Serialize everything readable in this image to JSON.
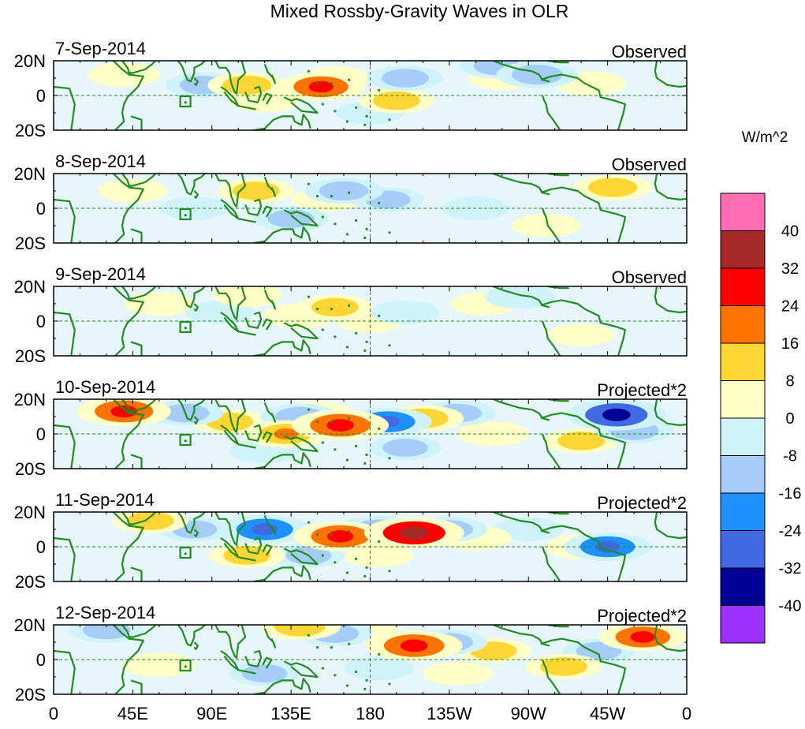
{
  "title": "Mixed Rossby-Gravity Waves in OLR",
  "panels": [
    {
      "date": "7-Sep-2014",
      "label": "Observed",
      "anomalies": [
        {
          "lon": 152,
          "lat": 5,
          "value": 18
        },
        {
          "lon": 195,
          "lat": -3,
          "value": 10
        },
        {
          "lon": 110,
          "lat": 6,
          "value": 12
        },
        {
          "lon": 160,
          "lat": 10,
          "value": 6
        },
        {
          "lon": 305,
          "lat": 7,
          "value": 8
        },
        {
          "lon": 40,
          "lat": 12,
          "value": 8
        },
        {
          "lon": 120,
          "lat": -3,
          "value": 6
        },
        {
          "lon": 255,
          "lat": 10,
          "value": 5
        },
        {
          "lon": 85,
          "lat": 6,
          "value": -10
        },
        {
          "lon": 275,
          "lat": 12,
          "value": -14
        },
        {
          "lon": 252,
          "lat": 17,
          "value": -9
        },
        {
          "lon": 200,
          "lat": 10,
          "value": -10
        },
        {
          "lon": 180,
          "lat": -10,
          "value": -5
        }
      ]
    },
    {
      "date": "8-Sep-2014",
      "label": "Observed",
      "anomalies": [
        {
          "lon": 318,
          "lat": 12,
          "value": 12
        },
        {
          "lon": 115,
          "lat": 10,
          "value": 10
        },
        {
          "lon": 155,
          "lat": 5,
          "value": 6
        },
        {
          "lon": 45,
          "lat": 10,
          "value": 6
        },
        {
          "lon": 280,
          "lat": -10,
          "value": 5
        },
        {
          "lon": 165,
          "lat": 10,
          "value": -12
        },
        {
          "lon": 135,
          "lat": -6,
          "value": -9
        },
        {
          "lon": 190,
          "lat": 5,
          "value": -8
        },
        {
          "lon": 240,
          "lat": 0,
          "value": -5
        },
        {
          "lon": 80,
          "lat": 0,
          "value": -5
        }
      ]
    },
    {
      "date": "9-Sep-2014",
      "label": "Observed",
      "anomalies": [
        {
          "lon": 160,
          "lat": 8,
          "value": 10
        },
        {
          "lon": 140,
          "lat": 3,
          "value": 8
        },
        {
          "lon": 180,
          "lat": 0,
          "value": 5
        },
        {
          "lon": 60,
          "lat": 10,
          "value": 6
        },
        {
          "lon": 245,
          "lat": 10,
          "value": 5
        },
        {
          "lon": 110,
          "lat": 15,
          "value": 6
        },
        {
          "lon": 300,
          "lat": -8,
          "value": 4
        },
        {
          "lon": 200,
          "lat": 5,
          "value": -6
        },
        {
          "lon": 95,
          "lat": 5,
          "value": -5
        },
        {
          "lon": 265,
          "lat": 14,
          "value": -6
        }
      ]
    },
    {
      "date": "10-Sep-2014",
      "label": "Projected*2",
      "anomalies": [
        {
          "lon": 40,
          "lat": 13,
          "value": 22
        },
        {
          "lon": 163,
          "lat": 5,
          "value": 24
        },
        {
          "lon": 132,
          "lat": 0,
          "value": 16
        },
        {
          "lon": 210,
          "lat": 9,
          "value": 14
        },
        {
          "lon": 100,
          "lat": 7,
          "value": 10
        },
        {
          "lon": 250,
          "lat": 0,
          "value": 8
        },
        {
          "lon": 300,
          "lat": -4,
          "value": 10
        },
        {
          "lon": 150,
          "lat": 12,
          "value": 6
        },
        {
          "lon": 190,
          "lat": 7,
          "value": -18
        },
        {
          "lon": 320,
          "lat": 11,
          "value": -26
        },
        {
          "lon": 140,
          "lat": 10,
          "value": -12
        },
        {
          "lon": 230,
          "lat": 12,
          "value": -10
        },
        {
          "lon": 330,
          "lat": 2,
          "value": -12
        },
        {
          "lon": 75,
          "lat": 12,
          "value": -10
        },
        {
          "lon": 200,
          "lat": -8,
          "value": -8
        },
        {
          "lon": 120,
          "lat": -10,
          "value": -6
        }
      ]
    },
    {
      "date": "11-Sep-2014",
      "label": "Projected*2",
      "anomalies": [
        {
          "lon": 205,
          "lat": 8,
          "value": 26
        },
        {
          "lon": 163,
          "lat": 6,
          "value": 22
        },
        {
          "lon": 240,
          "lat": 5,
          "value": 8
        },
        {
          "lon": 55,
          "lat": 15,
          "value": 10
        },
        {
          "lon": 110,
          "lat": -5,
          "value": 10
        },
        {
          "lon": 300,
          "lat": 0,
          "value": 8
        },
        {
          "lon": 185,
          "lat": -5,
          "value": 6
        },
        {
          "lon": 120,
          "lat": 10,
          "value": -20
        },
        {
          "lon": 315,
          "lat": 0,
          "value": -18
        },
        {
          "lon": 185,
          "lat": 10,
          "value": -14
        },
        {
          "lon": 225,
          "lat": 10,
          "value": -10
        },
        {
          "lon": 145,
          "lat": -5,
          "value": -8
        },
        {
          "lon": 80,
          "lat": 10,
          "value": -8
        },
        {
          "lon": 270,
          "lat": 10,
          "value": -6
        }
      ]
    },
    {
      "date": "12-Sep-2014",
      "label": "Projected*2",
      "anomalies": [
        {
          "lon": 205,
          "lat": 8,
          "value": 24
        },
        {
          "lon": 335,
          "lat": 13,
          "value": 18
        },
        {
          "lon": 140,
          "lat": 19,
          "value": 14
        },
        {
          "lon": 175,
          "lat": 17,
          "value": 8
        },
        {
          "lon": 250,
          "lat": 5,
          "value": 10
        },
        {
          "lon": 290,
          "lat": -4,
          "value": 10
        },
        {
          "lon": 60,
          "lat": -3,
          "value": 8
        },
        {
          "lon": 230,
          "lat": -8,
          "value": 6
        },
        {
          "lon": 30,
          "lat": 17,
          "value": -10
        },
        {
          "lon": 160,
          "lat": 15,
          "value": -10
        },
        {
          "lon": 225,
          "lat": 10,
          "value": -10
        },
        {
          "lon": 310,
          "lat": 5,
          "value": -8
        },
        {
          "lon": 120,
          "lat": -8,
          "value": -8
        },
        {
          "lon": 185,
          "lat": -5,
          "value": -6
        }
      ]
    }
  ],
  "lat_labels": [
    "20N",
    "0",
    "20S"
  ],
  "lon_labels": [
    "0",
    "45E",
    "90E",
    "135E",
    "180",
    "135W",
    "90W",
    "45W",
    "0"
  ],
  "colorbar": {
    "units": "W/m^2",
    "tick_labels": [
      "40",
      "32",
      "24",
      "16",
      "8",
      "0",
      "-8",
      "-16",
      "-24",
      "-32",
      "-40"
    ],
    "levels": [
      40,
      32,
      24,
      16,
      8,
      0,
      -8,
      -16,
      -24,
      -32,
      -40
    ],
    "colors_top_to_bottom": [
      "#ff6eb4",
      "#a52a2a",
      "#ff0000",
      "#ff7300",
      "#ffd633",
      "#ffffc8",
      "#cff2fb",
      "#a6cdfa",
      "#1e90ff",
      "#4169e1",
      "#000096",
      "#9b30ff"
    ]
  },
  "styles": {
    "coast_color": "#228b22",
    "equator_color": "#228b22"
  }
}
